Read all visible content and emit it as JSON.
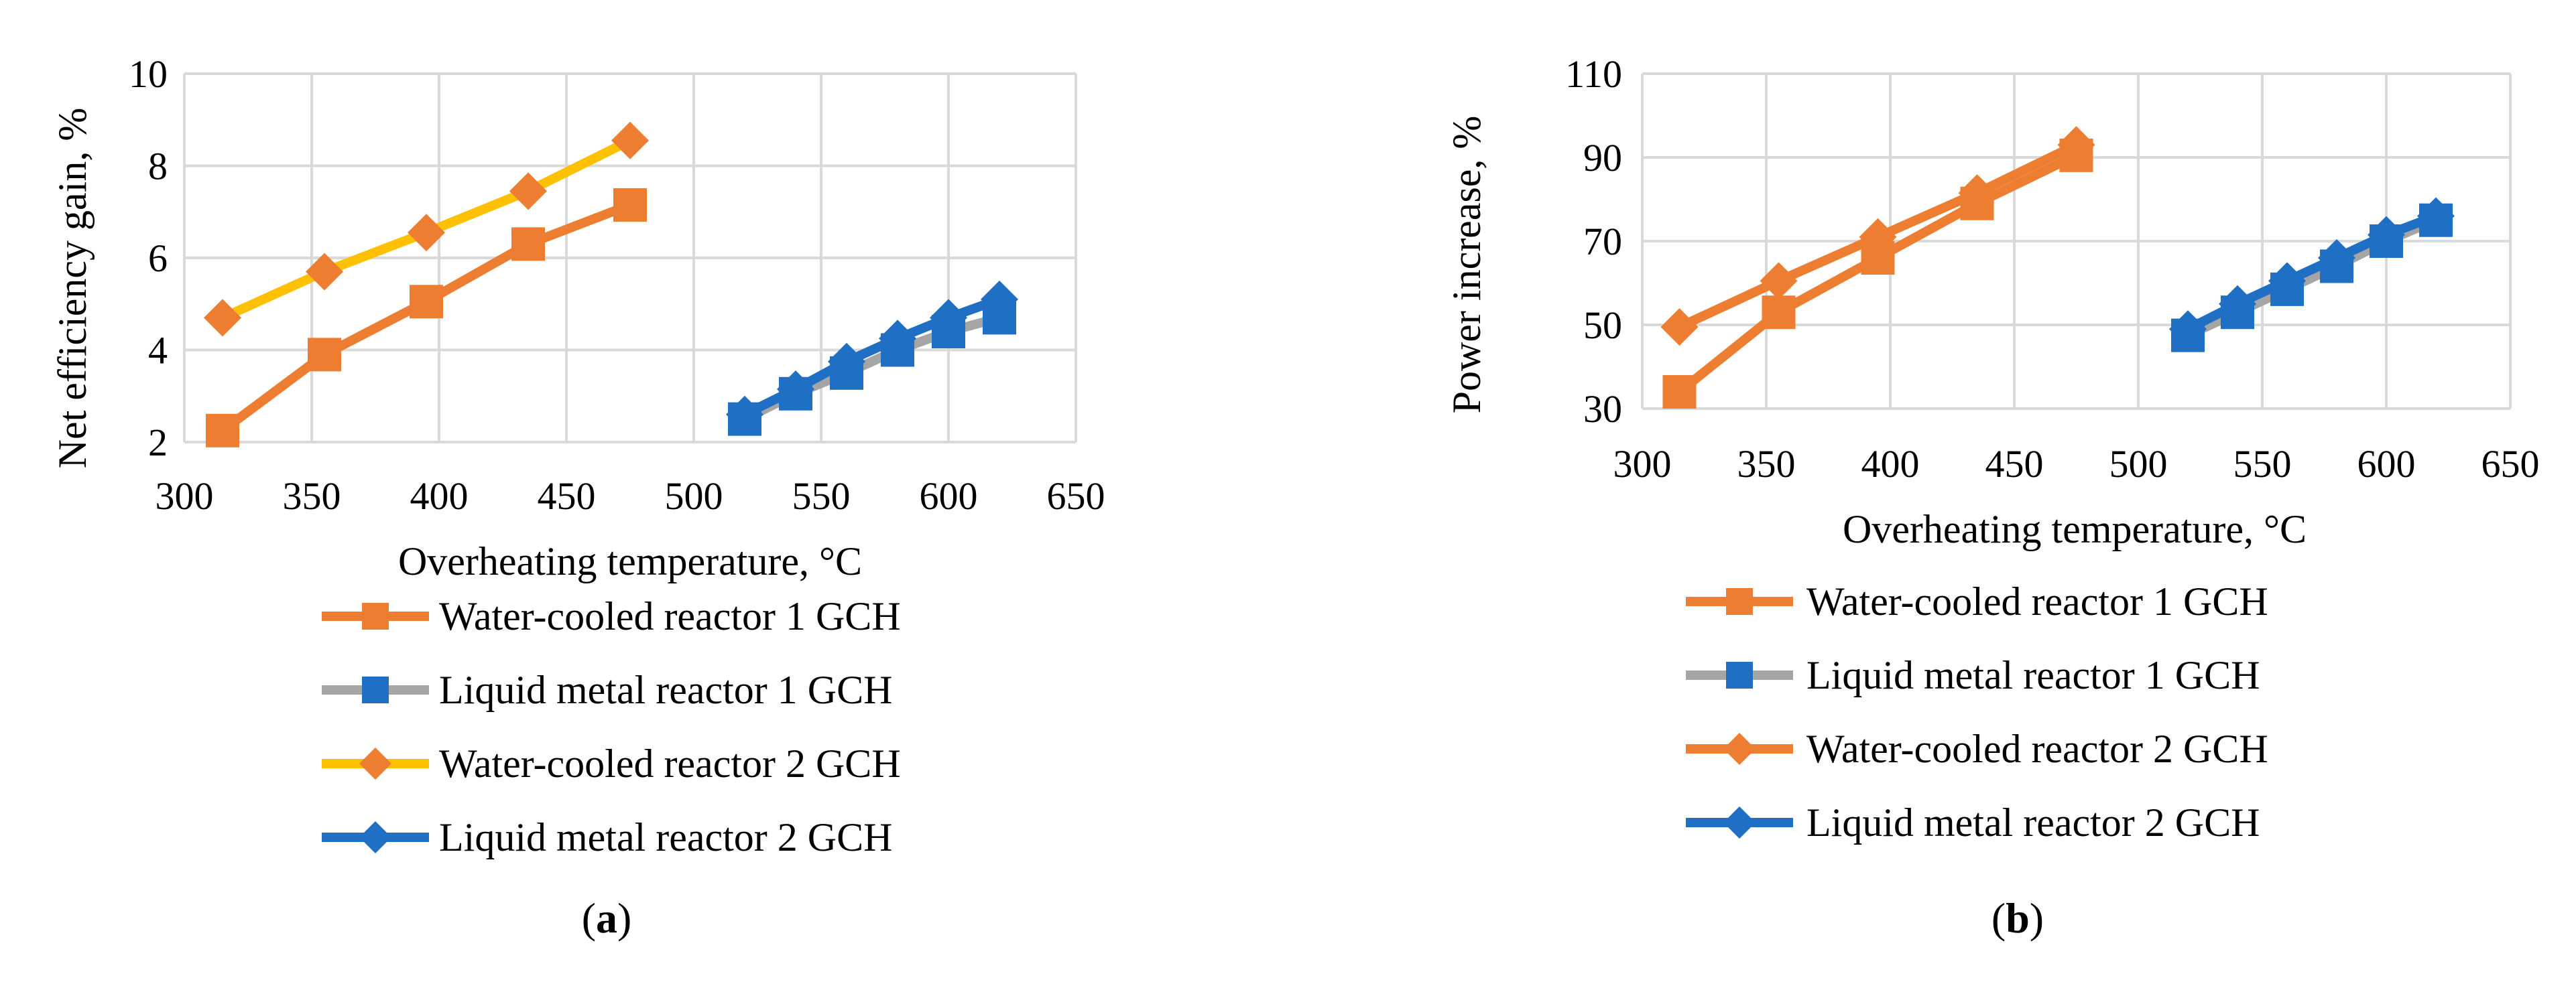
{
  "figure": {
    "panels": [
      {
        "caption_open": "(",
        "caption_letter": "a",
        "caption_close": ")"
      },
      {
        "caption_open": "(",
        "caption_letter": "b",
        "caption_close": ")"
      }
    ]
  },
  "chart_data": [
    {
      "type": "line",
      "panel": "a",
      "title": "",
      "xlabel": "Overheating temperature, °C",
      "ylabel": "Net efficiency gain, %",
      "xlim": [
        300,
        650
      ],
      "ylim": [
        2,
        10
      ],
      "xticks": [
        300,
        350,
        400,
        450,
        500,
        550,
        600,
        650
      ],
      "yticks": [
        2,
        4,
        6,
        8,
        10
      ],
      "grid": true,
      "legend_position": "bottom",
      "series": [
        {
          "name": "Water-cooled reactor 1 GCH",
          "color": "#ed7d31",
          "marker": "square",
          "x": [
            315,
            355,
            395,
            435,
            475
          ],
          "y": [
            2.25,
            3.9,
            5.05,
            6.3,
            7.15
          ]
        },
        {
          "name": "Liquid metal reactor 1 GCH",
          "color": "#a5a5a5",
          "marker": "square",
          "marker_color": "#1f6fc5",
          "x": [
            520,
            540,
            560,
            580,
            600,
            620
          ],
          "y": [
            2.5,
            3.05,
            3.5,
            4.0,
            4.4,
            4.7
          ]
        },
        {
          "name": "Water-cooled reactor 2 GCH",
          "color": "#ffc000",
          "marker": "diamond",
          "marker_color": "#ed7d31",
          "x": [
            315,
            355,
            395,
            435,
            475
          ],
          "y": [
            4.7,
            5.7,
            6.55,
            7.45,
            8.55
          ]
        },
        {
          "name": "Liquid metal reactor 2 GCH",
          "color": "#1f6fc5",
          "marker": "diamond",
          "x": [
            520,
            540,
            560,
            580,
            600,
            620
          ],
          "y": [
            2.6,
            3.15,
            3.75,
            4.25,
            4.7,
            5.1
          ]
        }
      ]
    },
    {
      "type": "line",
      "panel": "b",
      "title": "",
      "xlabel": "Overheating temperature, °C",
      "ylabel": "Power increase, %",
      "xlim": [
        300,
        650
      ],
      "ylim": [
        30,
        110
      ],
      "xticks": [
        300,
        350,
        400,
        450,
        500,
        550,
        600,
        650
      ],
      "yticks": [
        30,
        50,
        70,
        90,
        110
      ],
      "grid": true,
      "legend_position": "bottom",
      "series": [
        {
          "name": "Water-cooled reactor 1 GCH",
          "color": "#ed7d31",
          "marker": "square",
          "x": [
            315,
            355,
            395,
            435,
            475
          ],
          "y": [
            34,
            53,
            66,
            79,
            90.5
          ]
        },
        {
          "name": "Liquid metal reactor 1 GCH",
          "color": "#a5a5a5",
          "marker": "square",
          "marker_color": "#1f6fc5",
          "x": [
            520,
            540,
            560,
            580,
            600,
            620
          ],
          "y": [
            47.5,
            53,
            58.5,
            64,
            70,
            75
          ]
        },
        {
          "name": "Water-cooled reactor 2 GCH",
          "color": "#ed7d31",
          "marker": "diamond",
          "x": [
            315,
            355,
            395,
            435,
            475
          ],
          "y": [
            49.5,
            60.5,
            71,
            81.5,
            93
          ]
        },
        {
          "name": "Liquid metal reactor 2 GCH",
          "color": "#1f6fc5",
          "marker": "diamond",
          "x": [
            520,
            540,
            560,
            580,
            600,
            620
          ],
          "y": [
            49,
            55,
            60.5,
            66,
            71.5,
            76
          ]
        }
      ]
    }
  ]
}
